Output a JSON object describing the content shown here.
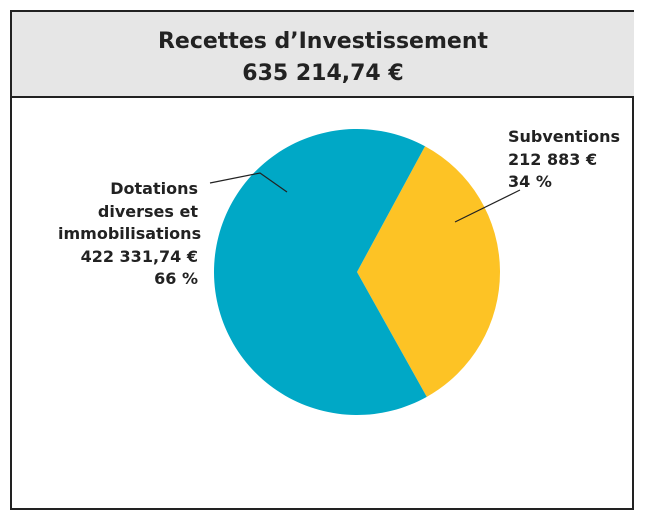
{
  "chart_data": {
    "type": "pie",
    "title": "Recettes d’Investissement",
    "subtitle": "635 214,74 €",
    "categories": [
      "Subventions",
      "Dotations diverses et immobilisations"
    ],
    "amounts": [
      "212 883 €",
      "422 331,74 €"
    ],
    "values": [
      34,
      66
    ],
    "value_labels": [
      "34 %",
      "66 %"
    ],
    "colors": [
      "#fdc325",
      "#00a8c6"
    ]
  }
}
